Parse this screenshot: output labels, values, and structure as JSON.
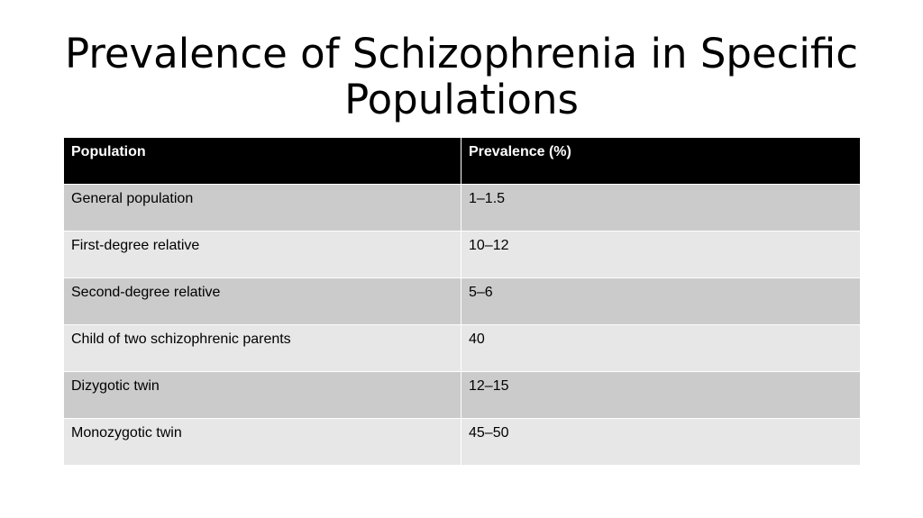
{
  "slide": {
    "title": "Prevalence of Schizophrenia in Specific Populations"
  },
  "table": {
    "headers": [
      "Population",
      "Prevalence (%)"
    ],
    "rows": [
      [
        "General population",
        "1–1.5"
      ],
      [
        "First-degree relative",
        "10–12"
      ],
      [
        "Second-degree relative",
        "5–6"
      ],
      [
        "Child of two schizophrenic parents",
        "40"
      ],
      [
        "Dizygotic twin",
        "12–15"
      ],
      [
        "Monozygotic twin",
        "45–50"
      ]
    ]
  },
  "colors": {
    "header_bg": "#000000",
    "header_text": "#ffffff",
    "row_band_dark": "#cbcbcb",
    "row_band_light": "#e7e7e7"
  }
}
